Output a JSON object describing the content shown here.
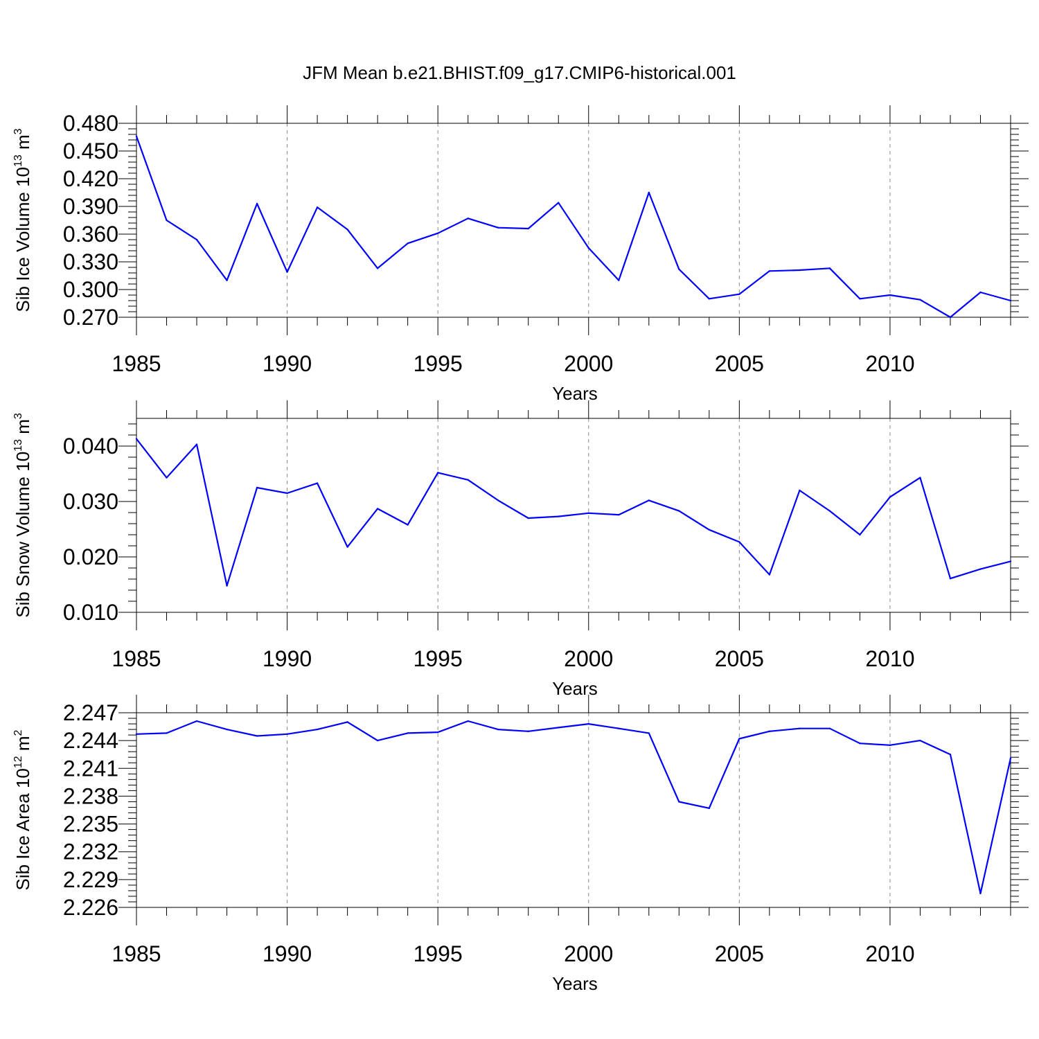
{
  "title": "JFM Mean b.e21.BHIST.f09_g17.CMIP6-historical.001",
  "colors": {
    "line": "#0000ff",
    "axis": "#000000",
    "grid": "#888888",
    "background": "#ffffff"
  },
  "chart_data": [
    {
      "type": "line",
      "name": "sib-ice-volume",
      "xlabel": "Years",
      "ylabel": {
        "text": "Sib Ice Volume 10",
        "exponent": "13",
        "unit": " m",
        "unit_exponent": "3"
      },
      "xlim": [
        1985,
        2014
      ],
      "ylim": [
        0.27,
        0.48
      ],
      "x_ticks": [
        1985,
        1990,
        1995,
        2000,
        2005,
        2010
      ],
      "x_tick_labels": [
        "1985",
        "1990",
        "1995",
        "2000",
        "2005",
        "2010"
      ],
      "y_ticks": [
        0.27,
        0.3,
        0.33,
        0.36,
        0.39,
        0.42,
        0.45,
        0.48
      ],
      "y_tick_labels": [
        "0.270",
        "0.300",
        "0.330",
        "0.360",
        "0.390",
        "0.420",
        "0.450",
        "0.480"
      ],
      "grid": "vertical-dashed",
      "x": [
        1985,
        1986,
        1987,
        1988,
        1989,
        1990,
        1991,
        1992,
        1993,
        1994,
        1995,
        1996,
        1997,
        1998,
        1999,
        2000,
        2001,
        2002,
        2003,
        2004,
        2005,
        2006,
        2007,
        2008,
        2009,
        2010,
        2011,
        2012,
        2013,
        2014
      ],
      "values": [
        0.466,
        0.375,
        0.354,
        0.31,
        0.393,
        0.319,
        0.389,
        0.365,
        0.323,
        0.35,
        0.361,
        0.377,
        0.367,
        0.366,
        0.394,
        0.345,
        0.31,
        0.405,
        0.322,
        0.29,
        0.295,
        0.32,
        0.321,
        0.323,
        0.29,
        0.294,
        0.289,
        0.27,
        0.297,
        0.288
      ]
    },
    {
      "type": "line",
      "name": "sib-snow-volume",
      "xlabel": "Years",
      "ylabel": {
        "text": "Sib Snow Volume 10",
        "exponent": "13",
        "unit": " m",
        "unit_exponent": "3"
      },
      "xlim": [
        1985,
        2014
      ],
      "ylim": [
        0.01,
        0.045
      ],
      "x_ticks": [
        1985,
        1990,
        1995,
        2000,
        2005,
        2010
      ],
      "x_tick_labels": [
        "1985",
        "1990",
        "1995",
        "2000",
        "2005",
        "2010"
      ],
      "y_ticks": [
        0.01,
        0.02,
        0.03,
        0.04
      ],
      "y_tick_labels": [
        "0.010",
        "0.020",
        "0.030",
        "0.040"
      ],
      "grid": "vertical-dashed",
      "x": [
        1985,
        1986,
        1987,
        1988,
        1989,
        1990,
        1991,
        1992,
        1993,
        1994,
        1995,
        1996,
        1997,
        1998,
        1999,
        2000,
        2001,
        2002,
        2003,
        2004,
        2005,
        2006,
        2007,
        2008,
        2009,
        2010,
        2011,
        2012,
        2013,
        2014
      ],
      "values": [
        0.0413,
        0.0343,
        0.0403,
        0.0148,
        0.0325,
        0.0315,
        0.0333,
        0.0218,
        0.0287,
        0.0258,
        0.0352,
        0.0339,
        0.0302,
        0.027,
        0.0273,
        0.0279,
        0.0276,
        0.0302,
        0.0283,
        0.0249,
        0.0227,
        0.0168,
        0.032,
        0.0283,
        0.024,
        0.0308,
        0.0343,
        0.0161,
        0.0178,
        0.0192
      ]
    },
    {
      "type": "line",
      "name": "sib-ice-area",
      "xlabel": "Years",
      "ylabel": {
        "text": "Sib Ice Area 10",
        "exponent": "12",
        "unit": " m",
        "unit_exponent": "2"
      },
      "xlim": [
        1985,
        2014
      ],
      "ylim": [
        2.226,
        2.247
      ],
      "x_ticks": [
        1985,
        1990,
        1995,
        2000,
        2005,
        2010
      ],
      "x_tick_labels": [
        "1985",
        "1990",
        "1995",
        "2000",
        "2005",
        "2010"
      ],
      "y_ticks": [
        2.226,
        2.229,
        2.232,
        2.235,
        2.238,
        2.241,
        2.244,
        2.247
      ],
      "y_tick_labels": [
        "2.226",
        "2.229",
        "2.232",
        "2.235",
        "2.238",
        "2.241",
        "2.244",
        "2.247"
      ],
      "grid": "vertical-dashed",
      "x": [
        1985,
        1986,
        1987,
        1988,
        1989,
        1990,
        1991,
        1992,
        1993,
        1994,
        1995,
        1996,
        1997,
        1998,
        1999,
        2000,
        2001,
        2002,
        2003,
        2004,
        2005,
        2006,
        2007,
        2008,
        2009,
        2010,
        2011,
        2012,
        2013,
        2014
      ],
      "values": [
        2.2447,
        2.2448,
        2.2461,
        2.2452,
        2.2445,
        2.2447,
        2.2452,
        2.246,
        2.244,
        2.2448,
        2.2449,
        2.2461,
        2.2452,
        2.245,
        2.2454,
        2.2458,
        2.2453,
        2.2448,
        2.2374,
        2.2367,
        2.2442,
        2.245,
        2.2453,
        2.2453,
        2.2437,
        2.2435,
        2.244,
        2.2425,
        2.2275,
        2.2421
      ]
    }
  ]
}
